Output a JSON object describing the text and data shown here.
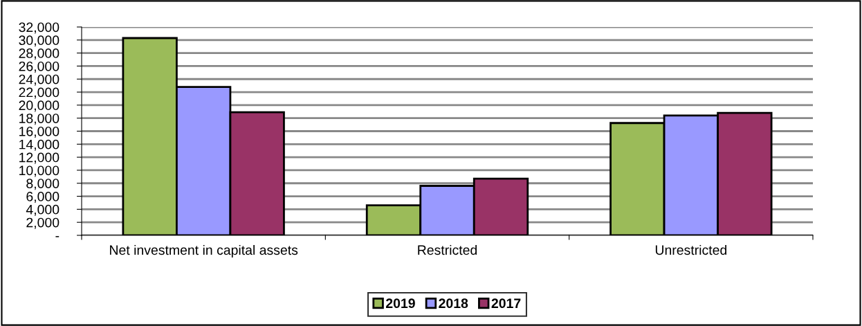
{
  "chart_data": {
    "type": "bar",
    "categories": [
      "Net investment in capital assets",
      "Restricted",
      "Unrestricted"
    ],
    "series": [
      {
        "name": "2019",
        "color": "#9bbb59",
        "values": [
          30300,
          4600,
          17250
        ]
      },
      {
        "name": "2018",
        "color": "#9999ff",
        "values": [
          22800,
          7600,
          18400
        ]
      },
      {
        "name": "2017",
        "color": "#993366",
        "values": [
          18900,
          8700,
          18800
        ]
      }
    ],
    "ylim": [
      0,
      32000
    ],
    "yticks": [
      {
        "value": 0,
        "label": "-"
      },
      {
        "value": 2000,
        "label": "2,000"
      },
      {
        "value": 4000,
        "label": "4,000"
      },
      {
        "value": 6000,
        "label": "6,000"
      },
      {
        "value": 8000,
        "label": "8,000"
      },
      {
        "value": 10000,
        "label": "10,000"
      },
      {
        "value": 12000,
        "label": "12,000"
      },
      {
        "value": 14000,
        "label": "14,000"
      },
      {
        "value": 16000,
        "label": "16,000"
      },
      {
        "value": 18000,
        "label": "18,000"
      },
      {
        "value": 20000,
        "label": "20,000"
      },
      {
        "value": 22000,
        "label": "22,000"
      },
      {
        "value": 24000,
        "label": "24,000"
      },
      {
        "value": 26000,
        "label": "26,000"
      },
      {
        "value": 28000,
        "label": "28,000"
      },
      {
        "value": 30000,
        "label": "30,000"
      },
      {
        "value": 32000,
        "label": "32,000"
      }
    ],
    "grid": "y",
    "legend": "bottom"
  }
}
